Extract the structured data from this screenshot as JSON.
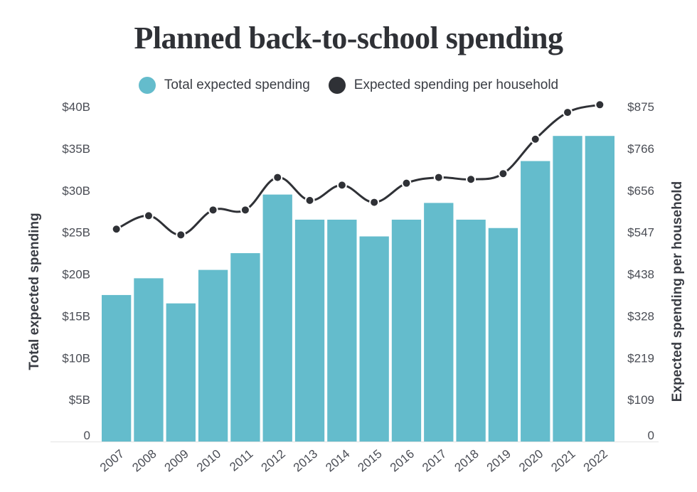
{
  "chart_data": {
    "type": "bar",
    "title": "Planned back-to-school spending",
    "categories": [
      "2007",
      "2008",
      "2009",
      "2010",
      "2011",
      "2012",
      "2013",
      "2014",
      "2015",
      "2016",
      "2017",
      "2018",
      "2019",
      "2020",
      "2021",
      "2022"
    ],
    "series": [
      {
        "name": "Total expected spending",
        "type": "bar",
        "axis": "left",
        "color": "#64bccc",
        "values": [
          17.5,
          19.5,
          16.5,
          20.5,
          22.5,
          29.5,
          26.5,
          26.5,
          24.5,
          26.5,
          28.5,
          26.5,
          25.5,
          33.5,
          36.5,
          36.5
        ]
      },
      {
        "name": "Expected spending per household",
        "type": "line",
        "axis": "right",
        "color": "#2f3136",
        "values": [
          555,
          590,
          540,
          605,
          605,
          690,
          630,
          670,
          625,
          675,
          690,
          685,
          700,
          790,
          860,
          880
        ]
      }
    ],
    "ylabel": "Total expected spending",
    "ylabel_right": "Expected spending per household",
    "ylim": [
      0,
      40
    ],
    "ylim_right": [
      0,
      875
    ],
    "yticks": [
      "0",
      "$5B",
      "$10B",
      "$15B",
      "$20B",
      "$25B",
      "$30B",
      "$35B",
      "$40B"
    ],
    "yticks_right": [
      "0",
      "$109",
      "$219",
      "$328",
      "$438",
      "$547",
      "$656",
      "$766",
      "$875"
    ],
    "legend_position": "top-center",
    "grid": false
  }
}
